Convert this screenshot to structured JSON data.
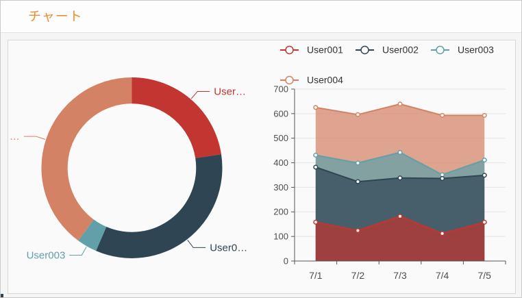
{
  "header": {
    "title": "チャート"
  },
  "page": {
    "background": "#f5f5f6",
    "panel_background": "#fafafa",
    "accent": "#ef8c30",
    "border_color": "#d6d6d6",
    "axis_color": "#555555",
    "grid_color": "#e4e4e4",
    "tick_label_color": "#4d4d4d",
    "legend_text_color": "#333333"
  },
  "chart_data": [
    {
      "type": "pie",
      "name": "user-share-donut",
      "inner_radius_ratio": 0.71,
      "slices": [
        {
          "label": "User001",
          "display_label": "User…",
          "percent": 22.6,
          "color": "#c23531"
        },
        {
          "label": "User002",
          "display_label": "User0…",
          "percent": 33.9,
          "color": "#2f4554"
        },
        {
          "label": "User003",
          "display_label": "User003",
          "percent": 3.6,
          "color": "#61a0a8"
        },
        {
          "label": "User004",
          "display_label": "…",
          "percent": 39.9,
          "color": "#d48265"
        }
      ]
    },
    {
      "type": "area",
      "name": "daily-user-values",
      "categories": [
        "7/1",
        "7/2",
        "7/3",
        "7/4",
        "7/5"
      ],
      "series": [
        {
          "name": "User001",
          "color": "#c23531",
          "values": [
            158,
            124,
            182,
            112,
            158
          ]
        },
        {
          "name": "User002",
          "color": "#2f4554",
          "values": [
            382,
            323,
            338,
            336,
            349
          ]
        },
        {
          "name": "User003",
          "color": "#61a0a8",
          "values": [
            431,
            399,
            442,
            351,
            411
          ]
        },
        {
          "name": "User004",
          "color": "#d48265",
          "values": [
            625,
            596,
            639,
            593,
            593
          ]
        }
      ],
      "legend": [
        "User001",
        "User002",
        "User003",
        "User004"
      ],
      "legend_position": "top",
      "ylim": [
        0,
        700
      ],
      "y_ticks": [
        0,
        100,
        200,
        300,
        400,
        500,
        600,
        700
      ],
      "grid": true,
      "area_opacity": 0.72
    }
  ]
}
